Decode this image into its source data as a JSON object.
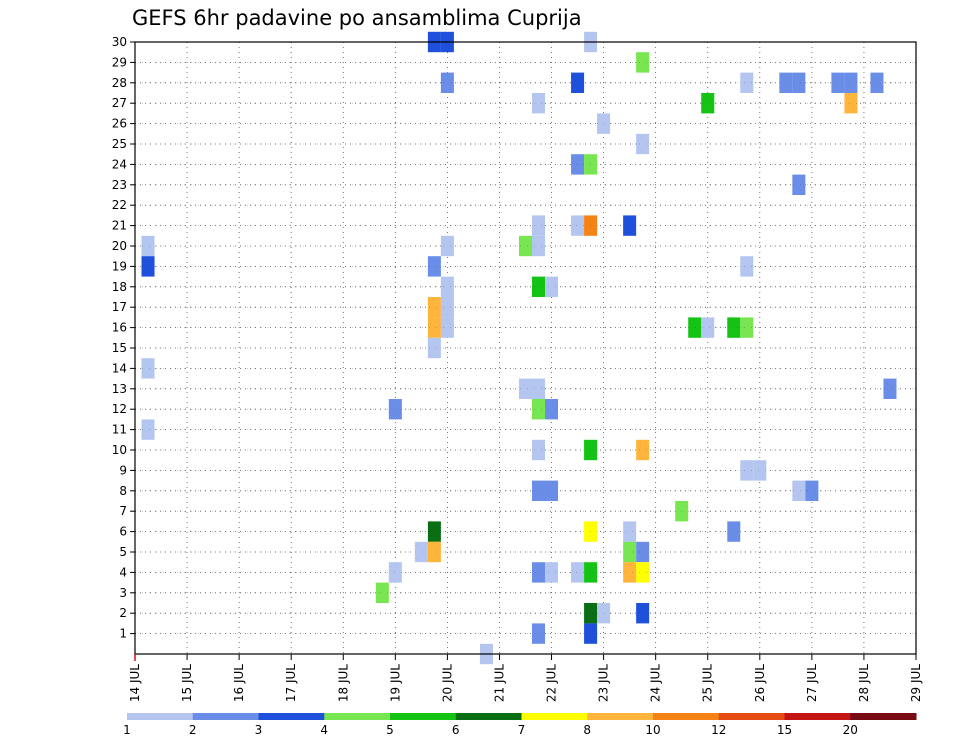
{
  "chart_data": {
    "type": "heatmap",
    "title": "GEFS 6hr padavine po ansamblima Cuprija",
    "xlabel": "",
    "ylabel": "",
    "x_ticks": [
      "14 JUL",
      "15 JUL",
      "16 JUL",
      "17 JUL",
      "18 JUL",
      "19 JUL",
      "20 JUL",
      "21 JUL",
      "22 JUL",
      "23 JUL",
      "24 JUL",
      "25 JUL",
      "26 JUL",
      "27 JUL",
      "28 JUL",
      "29 JUL"
    ],
    "y_ticks": [
      "1",
      "2",
      "3",
      "4",
      "5",
      "6",
      "7",
      "8",
      "9",
      "10",
      "11",
      "12",
      "13",
      "14",
      "15",
      "16",
      "17",
      "18",
      "19",
      "20",
      "21",
      "22",
      "23",
      "24",
      "25",
      "26",
      "27",
      "28",
      "29",
      "30"
    ],
    "xlim": [
      "14 JUL 00",
      "29 JUL 00"
    ],
    "ylim": [
      0,
      30
    ],
    "grid": true,
    "legend_placement": "bottom",
    "colorbar": {
      "labels": [
        "1",
        "2",
        "3",
        "4",
        "5",
        "6",
        "7",
        "8",
        "10",
        "12",
        "15",
        "20"
      ],
      "colors": [
        "#b4c6f0",
        "#6a8ee8",
        "#1e50dc",
        "#78e650",
        "#14c314",
        "#0a6e14",
        "#ffff00",
        "#ffb43c",
        "#f58214",
        "#e64b14",
        "#c31414",
        "#780a14"
      ]
    },
    "cells": [
      {
        "t": "14 JUL 06",
        "m": 20,
        "v": 1
      },
      {
        "t": "14 JUL 06",
        "m": 19,
        "v": 3
      },
      {
        "t": "14 JUL 06",
        "m": 14,
        "v": 1
      },
      {
        "t": "14 JUL 06",
        "m": 11,
        "v": 1
      },
      {
        "t": "18 JUL 18",
        "m": 3,
        "v": 4
      },
      {
        "t": "19 JUL 00",
        "m": 12,
        "v": 2
      },
      {
        "t": "19 JUL 00",
        "m": 4,
        "v": 1
      },
      {
        "t": "19 JUL 12",
        "m": 5,
        "v": 1
      },
      {
        "t": "19 JUL 18",
        "m": 30,
        "v": 3
      },
      {
        "t": "19 JUL 18",
        "m": 19,
        "v": 2
      },
      {
        "t": "19 JUL 18",
        "m": 17,
        "v": 8
      },
      {
        "t": "19 JUL 18",
        "m": 16,
        "v": 8
      },
      {
        "t": "19 JUL 18",
        "m": 15,
        "v": 1
      },
      {
        "t": "19 JUL 18",
        "m": 6,
        "v": 6
      },
      {
        "t": "19 JUL 18",
        "m": 5,
        "v": 8
      },
      {
        "t": "20 JUL 00",
        "m": 30,
        "v": 3
      },
      {
        "t": "20 JUL 00",
        "m": 28,
        "v": 2
      },
      {
        "t": "20 JUL 00",
        "m": 20,
        "v": 1
      },
      {
        "t": "20 JUL 00",
        "m": 18,
        "v": 1
      },
      {
        "t": "20 JUL 00",
        "m": 17,
        "v": 1
      },
      {
        "t": "20 JUL 00",
        "m": 16,
        "v": 1
      },
      {
        "t": "20 JUL 18",
        "m": 0,
        "v": 1
      },
      {
        "t": "21 JUL 12",
        "m": 20,
        "v": 4
      },
      {
        "t": "21 JUL 12",
        "m": 13,
        "v": 1
      },
      {
        "t": "21 JUL 18",
        "m": 27,
        "v": 1
      },
      {
        "t": "21 JUL 18",
        "m": 21,
        "v": 1
      },
      {
        "t": "21 JUL 18",
        "m": 20,
        "v": 1
      },
      {
        "t": "21 JUL 18",
        "m": 18,
        "v": 5
      },
      {
        "t": "21 JUL 18",
        "m": 13,
        "v": 1
      },
      {
        "t": "21 JUL 18",
        "m": 12,
        "v": 4
      },
      {
        "t": "21 JUL 18",
        "m": 10,
        "v": 1
      },
      {
        "t": "21 JUL 18",
        "m": 8,
        "v": 2
      },
      {
        "t": "21 JUL 18",
        "m": 4,
        "v": 2
      },
      {
        "t": "21 JUL 18",
        "m": 1,
        "v": 2
      },
      {
        "t": "22 JUL 00",
        "m": 18,
        "v": 1
      },
      {
        "t": "22 JUL 00",
        "m": 12,
        "v": 2
      },
      {
        "t": "22 JUL 00",
        "m": 8,
        "v": 2
      },
      {
        "t": "22 JUL 00",
        "m": 4,
        "v": 1
      },
      {
        "t": "22 JUL 12",
        "m": 28,
        "v": 3
      },
      {
        "t": "22 JUL 12",
        "m": 24,
        "v": 2
      },
      {
        "t": "22 JUL 12",
        "m": 21,
        "v": 1
      },
      {
        "t": "22 JUL 12",
        "m": 4,
        "v": 1
      },
      {
        "t": "22 JUL 18",
        "m": 30,
        "v": 1
      },
      {
        "t": "22 JUL 18",
        "m": 24,
        "v": 4
      },
      {
        "t": "22 JUL 18",
        "m": 21,
        "v": 11
      },
      {
        "t": "22 JUL 18",
        "m": 10,
        "v": 5
      },
      {
        "t": "22 JUL 18",
        "m": 6,
        "v": 7
      },
      {
        "t": "22 JUL 18",
        "m": 4,
        "v": 5
      },
      {
        "t": "22 JUL 18",
        "m": 2,
        "v": 6
      },
      {
        "t": "22 JUL 18",
        "m": 1,
        "v": 3
      },
      {
        "t": "23 JUL 00",
        "m": 26,
        "v": 1
      },
      {
        "t": "23 JUL 00",
        "m": 2,
        "v": 1
      },
      {
        "t": "23 JUL 12",
        "m": 21,
        "v": 3
      },
      {
        "t": "23 JUL 12",
        "m": 6,
        "v": 1
      },
      {
        "t": "23 JUL 12",
        "m": 5,
        "v": 4
      },
      {
        "t": "23 JUL 12",
        "m": 4,
        "v": 9
      },
      {
        "t": "23 JUL 18",
        "m": 29,
        "v": 4
      },
      {
        "t": "23 JUL 18",
        "m": 25,
        "v": 1
      },
      {
        "t": "23 JUL 18",
        "m": 10,
        "v": 9
      },
      {
        "t": "23 JUL 18",
        "m": 5,
        "v": 2
      },
      {
        "t": "23 JUL 18",
        "m": 4,
        "v": 7
      },
      {
        "t": "23 JUL 18",
        "m": 2,
        "v": 3
      },
      {
        "t": "24 JUL 12",
        "m": 7,
        "v": 4
      },
      {
        "t": "24 JUL 18",
        "m": 16,
        "v": 5
      },
      {
        "t": "25 JUL 00",
        "m": 27,
        "v": 5
      },
      {
        "t": "25 JUL 00",
        "m": 16,
        "v": 1
      },
      {
        "t": "25 JUL 12",
        "m": 16,
        "v": 5
      },
      {
        "t": "25 JUL 12",
        "m": 6,
        "v": 2
      },
      {
        "t": "25 JUL 18",
        "m": 28,
        "v": 1
      },
      {
        "t": "25 JUL 18",
        "m": 19,
        "v": 1
      },
      {
        "t": "25 JUL 18",
        "m": 16,
        "v": 4
      },
      {
        "t": "25 JUL 18",
        "m": 9,
        "v": 1
      },
      {
        "t": "26 JUL 00",
        "m": 9,
        "v": 1
      },
      {
        "t": "26 JUL 12",
        "m": 28,
        "v": 2
      },
      {
        "t": "26 JUL 18",
        "m": 28,
        "v": 2
      },
      {
        "t": "26 JUL 18",
        "m": 23,
        "v": 2
      },
      {
        "t": "26 JUL 18",
        "m": 8,
        "v": 1
      },
      {
        "t": "27 JUL 00",
        "m": 8,
        "v": 2
      },
      {
        "t": "27 JUL 12",
        "m": 28,
        "v": 2
      },
      {
        "t": "27 JUL 18",
        "m": 28,
        "v": 2
      },
      {
        "t": "27 JUL 18",
        "m": 27,
        "v": 8
      },
      {
        "t": "28 JUL 06",
        "m": 28,
        "v": 2
      },
      {
        "t": "28 JUL 12",
        "m": 13,
        "v": 2
      }
    ]
  }
}
